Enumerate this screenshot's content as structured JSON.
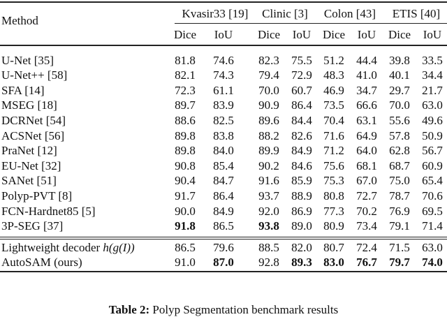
{
  "table": {
    "method_header": "Method",
    "datasets": [
      "Kvasir33 [19]",
      "Clinic [3]",
      "Colon [43]",
      "ETIS [40]"
    ],
    "metrics": [
      "Dice",
      "IoU",
      "Dice",
      "IoU",
      "Dice",
      "IoU",
      "Dice",
      "IoU"
    ],
    "rows": [
      {
        "method": "U-Net [35]",
        "values": [
          "81.8",
          "74.6",
          "82.3",
          "75.5",
          "51.2",
          "44.4",
          "39.8",
          "33.5"
        ],
        "bold": []
      },
      {
        "method": "U-Net++ [58]",
        "values": [
          "82.1",
          "74.3",
          "79.4",
          "72.9",
          "48.3",
          "41.0",
          "40.1",
          "34.4"
        ],
        "bold": []
      },
      {
        "method": "SFA [14]",
        "values": [
          "72.3",
          "61.1",
          "70.0",
          "60.7",
          "46.9",
          "34.7",
          "29.7",
          "21.7"
        ],
        "bold": []
      },
      {
        "method": "MSEG [18]",
        "values": [
          "89.7",
          "83.9",
          "90.9",
          "86.4",
          "73.5",
          "66.6",
          "70.0",
          "63.0"
        ],
        "bold": []
      },
      {
        "method": "DCRNet [54]",
        "values": [
          "88.6",
          "82.5",
          "89.6",
          "84.4",
          "70.4",
          "63.1",
          "55.6",
          "49.6"
        ],
        "bold": []
      },
      {
        "method": "ACSNet [56]",
        "values": [
          "89.8",
          "83.8",
          "88.2",
          "82.6",
          "71.6",
          "64.9",
          "57.8",
          "50.9"
        ],
        "bold": []
      },
      {
        "method": "PraNet [12]",
        "values": [
          "89.8",
          "84.0",
          "89.9",
          "84.9",
          "71.2",
          "64.0",
          "62.8",
          "56.7"
        ],
        "bold": []
      },
      {
        "method": "EU-Net [32]",
        "values": [
          "90.8",
          "85.4",
          "90.2",
          "84.6",
          "75.6",
          "68.1",
          "68.7",
          "60.9"
        ],
        "bold": []
      },
      {
        "method": "SANet [51]",
        "values": [
          "90.4",
          "84.7",
          "91.6",
          "85.9",
          "75.3",
          "67.0",
          "75.0",
          "65.4"
        ],
        "bold": []
      },
      {
        "method": "Polyp-PVT [8]",
        "values": [
          "91.7",
          "86.4",
          "93.7",
          "88.9",
          "80.8",
          "72.7",
          "78.7",
          "70.6"
        ],
        "bold": []
      },
      {
        "method": "FCN-Hardnet85 [5]",
        "values": [
          "90.0",
          "84.9",
          "92.0",
          "86.9",
          "77.3",
          "70.2",
          "76.9",
          "69.5"
        ],
        "bold": []
      },
      {
        "method": "3P-SEG [37]",
        "values": [
          "91.8",
          "86.5",
          "93.8",
          "89.0",
          "80.9",
          "73.4",
          "79.1",
          "71.4"
        ],
        "bold": [
          0,
          2
        ]
      },
      {
        "method": "Lightweight decoder h(g(I))",
        "values": [
          "86.5",
          "79.6",
          "88.5",
          "82.0",
          "80.7",
          "72.4",
          "71.5",
          "63.0"
        ],
        "bold": []
      },
      {
        "method": "AutoSAM (ours)",
        "values": [
          "91.0",
          "87.0",
          "92.8",
          "89.3",
          "83.0",
          "76.7",
          "79.7",
          "74.0"
        ],
        "bold": [
          1,
          3,
          4,
          5,
          6,
          7
        ]
      }
    ]
  },
  "caption": {
    "label": "Table 2:",
    "text": "Polyp Segmentation benchmark results"
  }
}
